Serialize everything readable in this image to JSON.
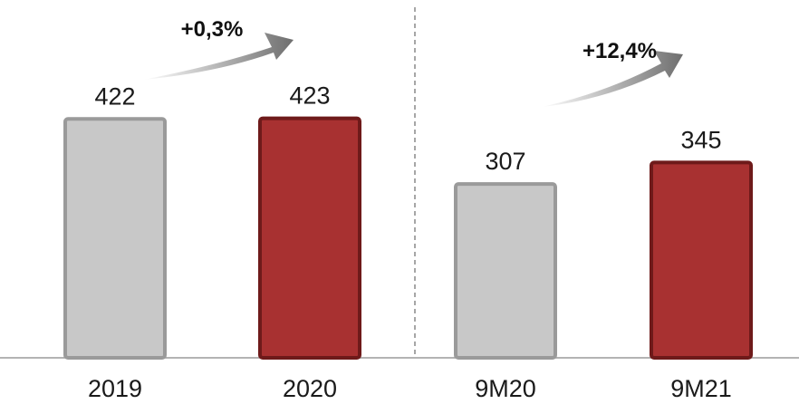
{
  "chart_data": {
    "type": "bar",
    "categories": [
      "2019",
      "2020",
      "9M20",
      "9M21"
    ],
    "values": [
      422,
      423,
      307,
      345
    ],
    "value_labels": [
      "422",
      "423",
      "307",
      "345"
    ],
    "colors": [
      "#c8c8c8",
      "#a83131",
      "#c8c8c8",
      "#a83131"
    ],
    "groups": [
      {
        "categories": [
          "2019",
          "2020"
        ],
        "growth_label": "+0,3%"
      },
      {
        "categories": [
          "9M20",
          "9M21"
        ],
        "growth_label": "+12,4%"
      }
    ],
    "ylim": [
      0,
      480
    ],
    "separator": "dashed vertical line between groups",
    "title": "",
    "xlabel": "",
    "ylabel": ""
  }
}
